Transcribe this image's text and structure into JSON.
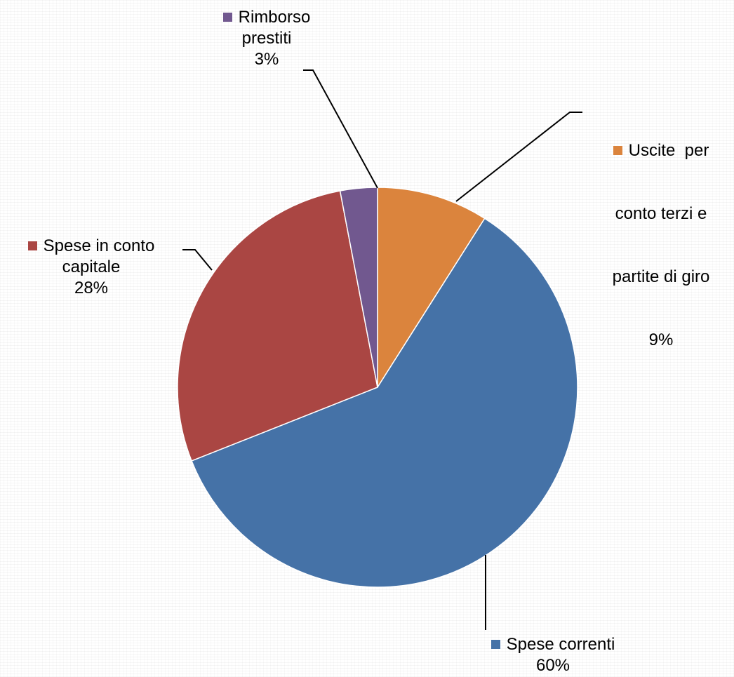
{
  "chart_data": {
    "type": "pie",
    "start_angle_deg": 0,
    "direction": "clockwise",
    "slices": [
      {
        "name": "Uscite  per conto terzi e partite di giro",
        "value": 9,
        "pct_label": "9%",
        "color": "#DB843D"
      },
      {
        "name": "Spese correnti",
        "value": 60,
        "pct_label": "60%",
        "color": "#4572A7"
      },
      {
        "name": "Spese in conto capitale",
        "value": 28,
        "pct_label": "28%",
        "color": "#AA4643"
      },
      {
        "name": "Rimborso prestiti",
        "value": 3,
        "pct_label": "3%",
        "color": "#71588F"
      }
    ]
  },
  "labels": {
    "uscite": {
      "lines": [
        "Uscite  per",
        "conto terzi e",
        "partite di giro"
      ],
      "pct": "9%"
    },
    "correnti": {
      "lines": [
        "Spese correnti"
      ],
      "pct": "60%"
    },
    "capitale": {
      "lines": [
        "Spese in conto",
        "capitale"
      ],
      "pct": "28%"
    },
    "rimborso": {
      "lines": [
        "Rimborso",
        "prestiti"
      ],
      "pct": "3%"
    }
  }
}
